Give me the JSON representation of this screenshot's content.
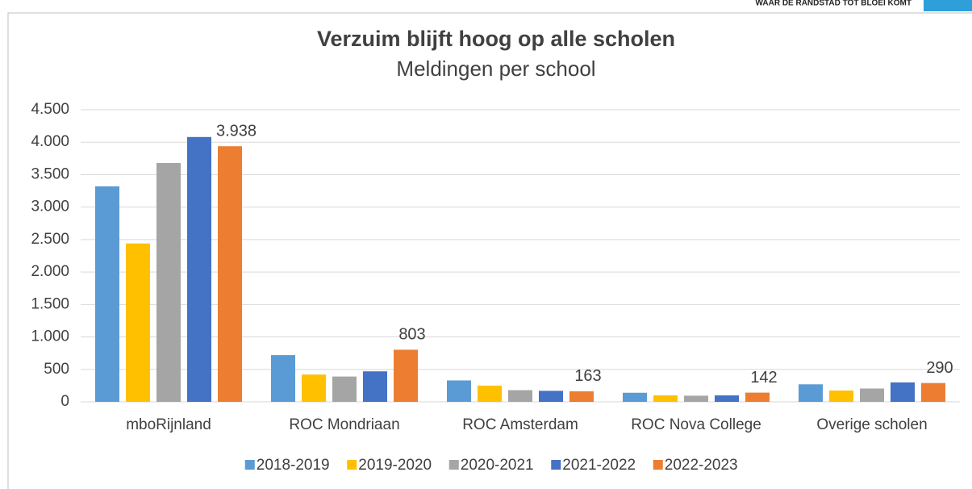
{
  "header": {
    "tagline": "WAAR DE RANDSTAD TOT BLOEI KOMT"
  },
  "chart_data": {
    "type": "bar",
    "title": "Verzuim blijft hoog op alle scholen",
    "subtitle": "Meldingen per school",
    "categories": [
      "mboRijnland",
      "ROC Mondriaan",
      "ROC Amsterdam",
      "ROC Nova College",
      "Overige scholen"
    ],
    "series": [
      {
        "name": "2018-2019",
        "color": "#5b9bd5",
        "values": [
          3320,
          720,
          330,
          140,
          270
        ]
      },
      {
        "name": "2019-2020",
        "color": "#ffc000",
        "values": [
          2440,
          420,
          250,
          100,
          175
        ]
      },
      {
        "name": "2020-2021",
        "color": "#a5a5a5",
        "values": [
          3680,
          390,
          180,
          95,
          205
        ]
      },
      {
        "name": "2021-2022",
        "color": "#4472c4",
        "values": [
          4080,
          470,
          170,
          100,
          300
        ]
      },
      {
        "name": "2022-2023",
        "color": "#ed7d31",
        "values": [
          3938,
          803,
          163,
          142,
          290
        ],
        "value_labels": [
          "3.938",
          "803",
          "163",
          "142",
          "290"
        ]
      }
    ],
    "ylim": [
      0,
      4500
    ],
    "yticks": [
      0,
      500,
      {
        "value": 1000,
        "label": "1.000"
      },
      {
        "value": 1500,
        "label": "1.500"
      },
      {
        "value": 2000,
        "label": "2.000"
      },
      {
        "value": 2500,
        "label": "2.500"
      },
      {
        "value": 3000,
        "label": "3.000"
      },
      {
        "value": 3500,
        "label": "3.500"
      },
      {
        "value": 4000,
        "label": "4.000"
      },
      {
        "value": 4500,
        "label": "4.500"
      }
    ],
    "grid": true,
    "legend": "bottom"
  }
}
